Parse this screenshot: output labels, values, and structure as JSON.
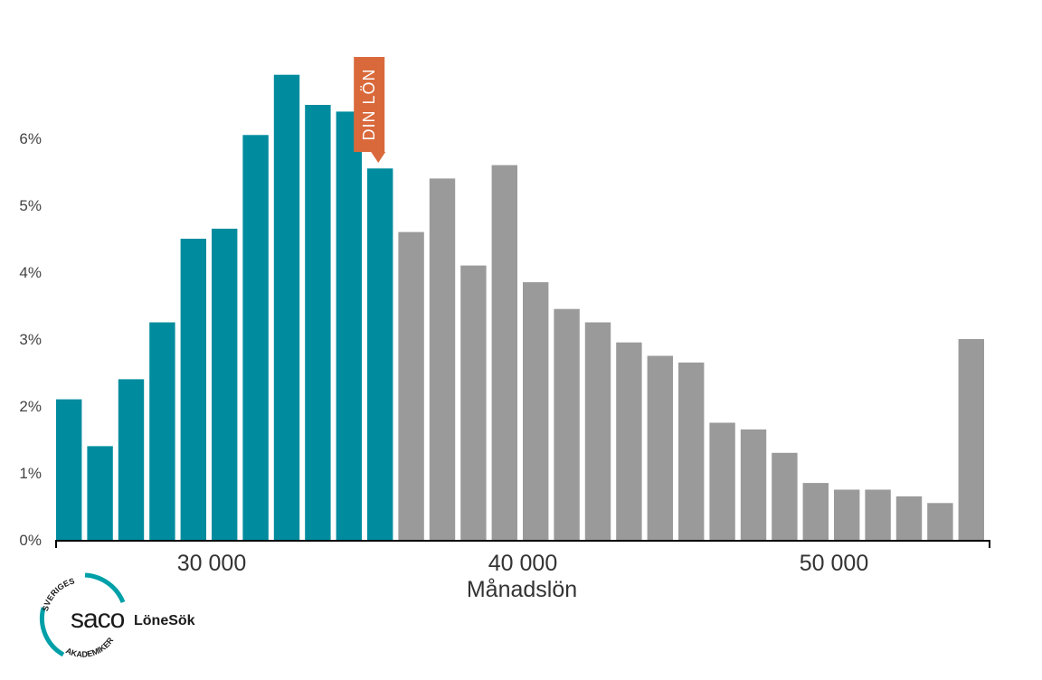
{
  "chart_data": {
    "type": "bar",
    "xlabel": "Månadslön",
    "ylabel": "",
    "ylim": [
      0,
      7
    ],
    "y_ticks": [
      0,
      1,
      2,
      3,
      4,
      5,
      6
    ],
    "y_tick_labels": [
      "0%",
      "1%",
      "2%",
      "3%",
      "4%",
      "5%",
      "6%"
    ],
    "x_range": [
      25000,
      55000
    ],
    "x_ticks": [
      30000,
      40000,
      50000
    ],
    "x_tick_labels": [
      "30 000",
      "40 000",
      "50 000"
    ],
    "bin_width": 1000,
    "bin_centers": [
      25500,
      26500,
      27500,
      28500,
      29500,
      30500,
      31500,
      32500,
      33500,
      34500,
      35500,
      36500,
      37500,
      38500,
      39500,
      40500,
      41500,
      42500,
      43500,
      44500,
      45500,
      46500,
      47500,
      48500,
      49500,
      50500,
      51500,
      52500,
      53500,
      54500
    ],
    "values": [
      2.1,
      1.4,
      2.4,
      3.25,
      4.5,
      4.65,
      6.05,
      6.95,
      6.5,
      6.4,
      5.55,
      4.6,
      5.4,
      4.1,
      5.6,
      3.85,
      3.45,
      3.25,
      2.95,
      2.75,
      2.65,
      1.75,
      1.65,
      1.3,
      0.85,
      0.75,
      0.75,
      0.65,
      0.55,
      3.0
    ],
    "highlight_through_index": 10,
    "colors": {
      "highlight": "#008c9e",
      "rest": "#9a9a9a",
      "marker": "#d9693b",
      "axis": "#000000"
    },
    "marker": {
      "label": "DIN LÖN",
      "bin_index": 10
    },
    "grid": false,
    "legend": "none"
  },
  "logo": {
    "brand": "saco",
    "product": "LöneSök",
    "ring_top": "SVERIGES",
    "ring_bottom": "AKADEMIKER",
    "color": "#00a0a8"
  }
}
